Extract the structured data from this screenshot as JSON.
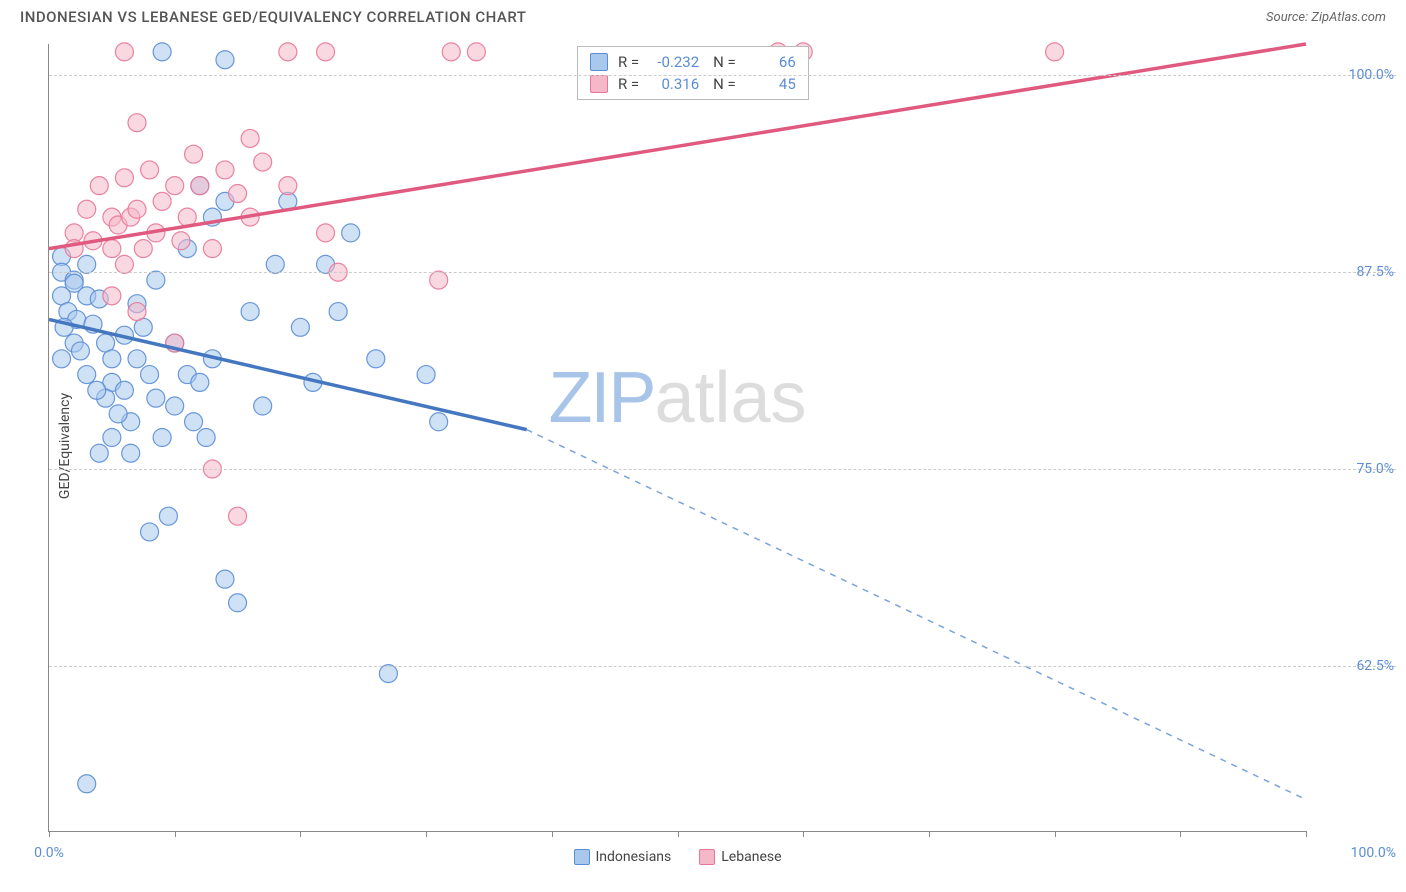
{
  "header": {
    "title": "INDONESIAN VS LEBANESE GED/EQUIVALENCY CORRELATION CHART",
    "source": "Source: ZipAtlas.com"
  },
  "chart": {
    "type": "scatter",
    "ylabel": "GED/Equivalency",
    "xlim": [
      0,
      100
    ],
    "ylim": [
      52,
      102
    ],
    "xticks": [
      0,
      10,
      20,
      30,
      40,
      50,
      60,
      70,
      80,
      90,
      100
    ],
    "xtick_labels_visible": {
      "0": "0.0%",
      "100": "100.0%"
    },
    "yticks": [
      62.5,
      75.0,
      87.5,
      100.0
    ],
    "ytick_labels": [
      "62.5%",
      "75.0%",
      "87.5%",
      "100.0%"
    ],
    "grid_color": "#cccccc",
    "background_color": "#ffffff",
    "axis_color": "#888888",
    "marker_radius": 9,
    "marker_opacity": 0.55,
    "marker_stroke_opacity": 0.9,
    "series": {
      "indonesians": {
        "label": "Indonesians",
        "fill": "#a8c8ec",
        "stroke": "#5b8dd6",
        "points": [
          [
            9,
            101.5
          ],
          [
            14,
            101
          ],
          [
            1,
            88.5
          ],
          [
            1,
            87.5
          ],
          [
            2,
            87
          ],
          [
            1,
            86
          ],
          [
            2,
            86.8
          ],
          [
            1.5,
            85
          ],
          [
            2.2,
            84.5
          ],
          [
            3,
            88
          ],
          [
            3,
            86
          ],
          [
            3.5,
            84.2
          ],
          [
            4,
            85.8
          ],
          [
            4.5,
            83
          ],
          [
            5,
            82
          ],
          [
            5,
            80.5
          ],
          [
            6,
            83.5
          ],
          [
            6,
            80
          ],
          [
            6.5,
            78
          ],
          [
            7,
            82
          ],
          [
            7.5,
            84
          ],
          [
            8,
            81
          ],
          [
            8.5,
            79.5
          ],
          [
            9,
            77
          ],
          [
            9.5,
            72
          ],
          [
            10,
            83
          ],
          [
            10,
            79
          ],
          [
            11,
            81
          ],
          [
            11.5,
            78
          ],
          [
            12,
            93
          ],
          [
            12,
            80.5
          ],
          [
            12.5,
            77
          ],
          [
            13,
            82
          ],
          [
            14,
            92
          ],
          [
            14,
            68
          ],
          [
            15,
            66.5
          ],
          [
            16,
            85
          ],
          [
            17,
            79
          ],
          [
            18,
            88
          ],
          [
            20,
            84
          ],
          [
            21,
            80.5
          ],
          [
            22,
            88
          ],
          [
            23,
            85
          ],
          [
            26,
            82
          ],
          [
            27,
            62
          ],
          [
            30,
            81
          ],
          [
            31,
            78
          ],
          [
            3,
            55
          ],
          [
            8,
            71
          ],
          [
            4,
            76
          ],
          [
            5,
            77
          ],
          [
            6.5,
            76
          ],
          [
            2,
            83
          ],
          [
            1,
            82
          ],
          [
            3,
            81
          ],
          [
            4.5,
            79.5
          ],
          [
            1.2,
            84
          ],
          [
            2.5,
            82.5
          ],
          [
            3.8,
            80
          ],
          [
            5.5,
            78.5
          ],
          [
            7,
            85.5
          ],
          [
            8.5,
            87
          ],
          [
            11,
            89
          ],
          [
            13,
            91
          ],
          [
            19,
            92
          ],
          [
            24,
            90
          ]
        ],
        "trend": {
          "solid": [
            [
              0,
              84.5
            ],
            [
              38,
              77.5
            ]
          ],
          "dashed": [
            [
              38,
              77.5
            ],
            [
              100,
              54
            ]
          ],
          "color": "#4577c0",
          "dash_color": "#7ba3dc",
          "width": 3.5
        }
      },
      "lebanese": {
        "label": "Lebanese",
        "fill": "#f4b8c8",
        "stroke": "#e87797",
        "points": [
          [
            6,
            101.5
          ],
          [
            19,
            101.5
          ],
          [
            22,
            101.5
          ],
          [
            32,
            101.5
          ],
          [
            34,
            101.5
          ],
          [
            58,
            101.5
          ],
          [
            60,
            101.5
          ],
          [
            80,
            101.5
          ],
          [
            2,
            90
          ],
          [
            2,
            89
          ],
          [
            3,
            91.5
          ],
          [
            3.5,
            89.5
          ],
          [
            4,
            93
          ],
          [
            5,
            91
          ],
          [
            5,
            89
          ],
          [
            5.5,
            90.5
          ],
          [
            6,
            93.5
          ],
          [
            6.5,
            91
          ],
          [
            7,
            97
          ],
          [
            7,
            91.5
          ],
          [
            7.5,
            89
          ],
          [
            8,
            94
          ],
          [
            8.5,
            90
          ],
          [
            9,
            92
          ],
          [
            10,
            93
          ],
          [
            10.5,
            89.5
          ],
          [
            11,
            91
          ],
          [
            11.5,
            95
          ],
          [
            12,
            93
          ],
          [
            13,
            89
          ],
          [
            14,
            94
          ],
          [
            15,
            92.5
          ],
          [
            16,
            96
          ],
          [
            16,
            91
          ],
          [
            17,
            94.5
          ],
          [
            19,
            93
          ],
          [
            22,
            90
          ],
          [
            23,
            87.5
          ],
          [
            31,
            87
          ],
          [
            5,
            86
          ],
          [
            7,
            85
          ],
          [
            10,
            83
          ],
          [
            13,
            75
          ],
          [
            15,
            72
          ],
          [
            6,
            88
          ]
        ],
        "trend": {
          "solid": [
            [
              0,
              89
            ],
            [
              100,
              102
            ]
          ],
          "color": "#e05a80",
          "width": 3.5
        }
      }
    },
    "legend_bottom": [
      {
        "label": "Indonesians",
        "fill": "#a8c8ec",
        "stroke": "#5b8dd6"
      },
      {
        "label": "Lebanese",
        "fill": "#f4b8c8",
        "stroke": "#e87797"
      }
    ],
    "stats": [
      {
        "fill": "#a8c8ec",
        "stroke": "#5b8dd6",
        "r": "-0.232",
        "n": "66"
      },
      {
        "fill": "#f4b8c8",
        "stroke": "#e87797",
        "r": "0.316",
        "n": "45"
      }
    ],
    "watermark": {
      "part1": "ZIP",
      "part2": "atlas"
    }
  }
}
